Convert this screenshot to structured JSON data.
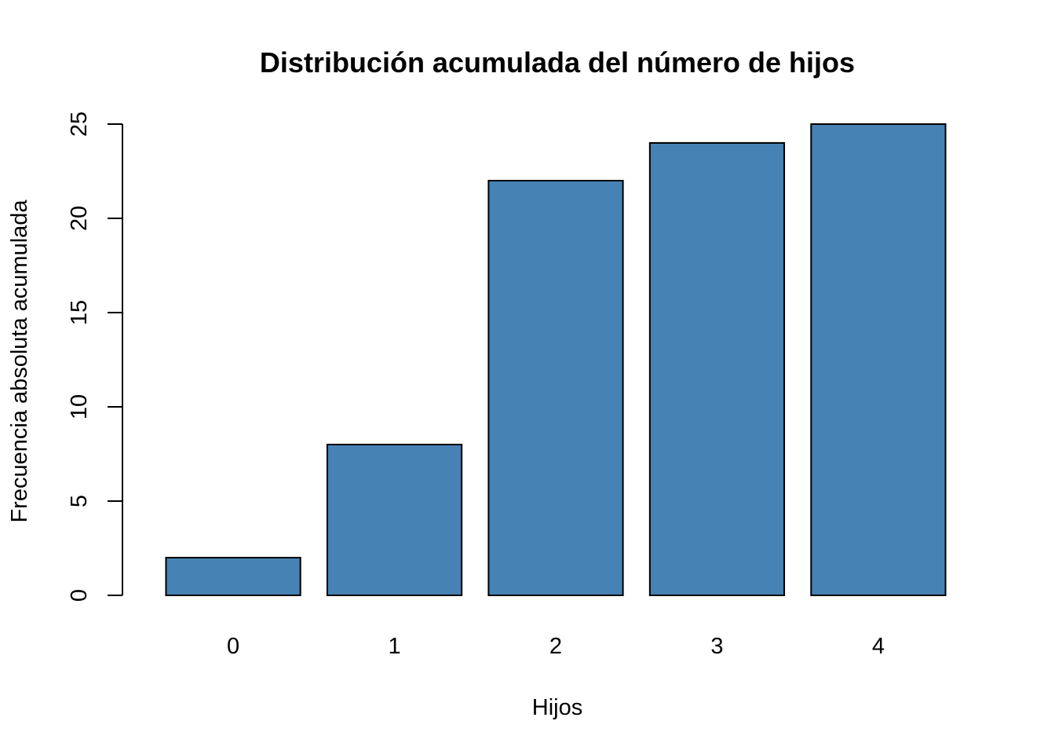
{
  "chart_data": {
    "type": "bar",
    "title": "Distribución acumulada del número de hijos",
    "xlabel": "Hijos",
    "ylabel": "Frecuencia absoluta acumulada",
    "categories": [
      "0",
      "1",
      "2",
      "3",
      "4"
    ],
    "values": [
      2,
      8,
      22,
      24,
      25
    ],
    "ylim": [
      0,
      25
    ],
    "yticks": [
      0,
      5,
      10,
      15,
      20,
      25
    ],
    "grid": false,
    "colors": {
      "bar_fill": "#4682B4",
      "bar_border": "#000000"
    }
  }
}
